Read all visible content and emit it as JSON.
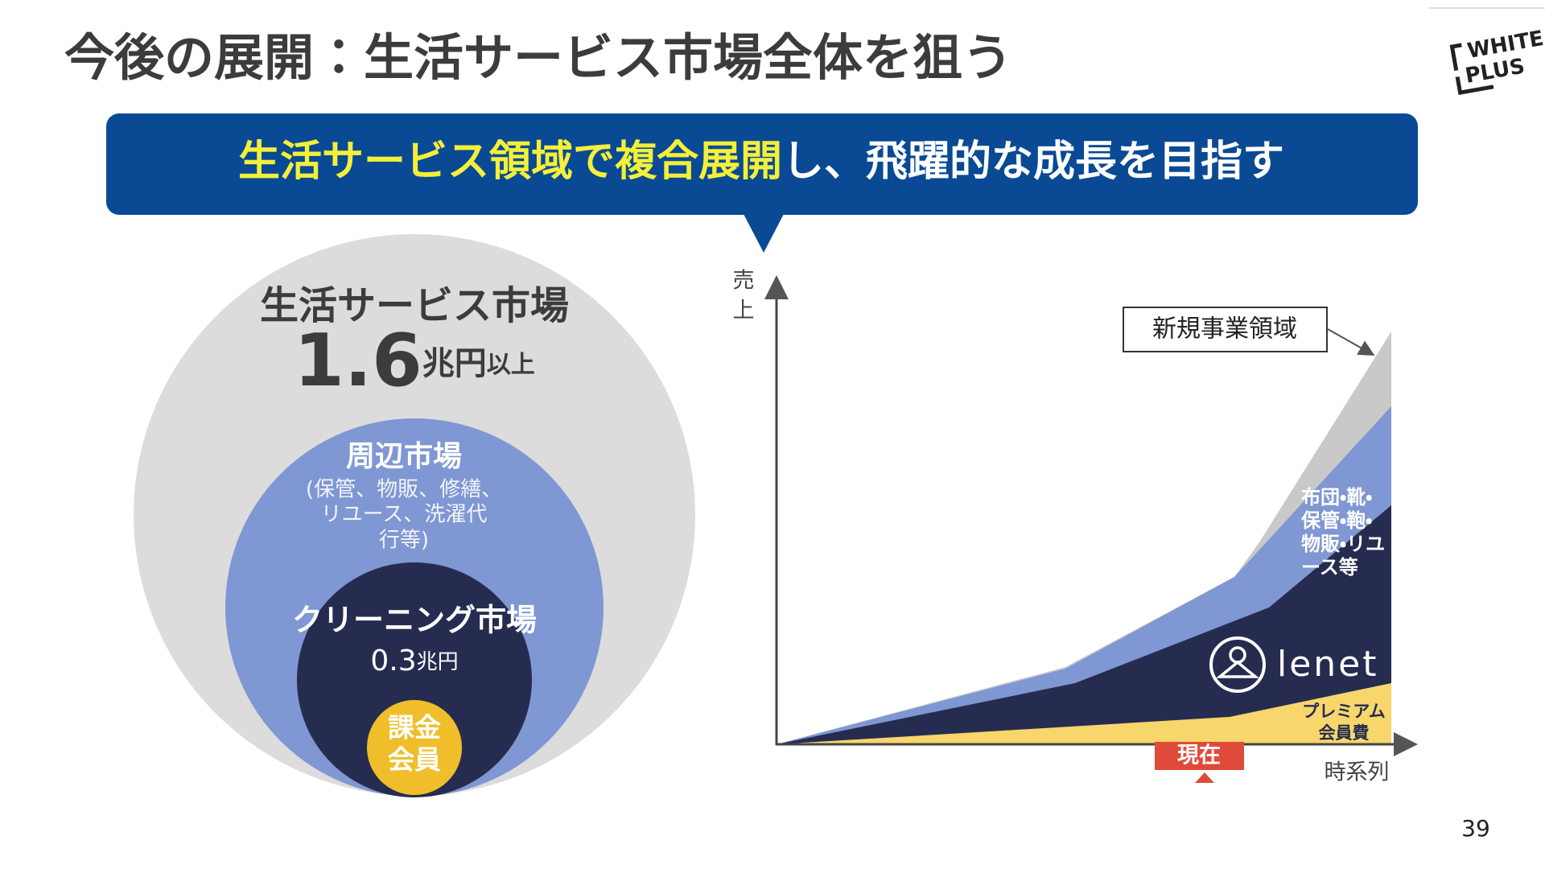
{
  "header": {
    "title": "今後の展開：生活サービス市場全体を狙う",
    "logo": [
      "WHITE",
      "PLUS"
    ]
  },
  "banner": {
    "highlight": "生活サービス領域で複合展開",
    "rest": "し、飛躍的な成長を目指す"
  },
  "market": {
    "outer": {
      "label": "生活サービス市場",
      "value": 1.6,
      "unit": "兆円",
      "suffix": "以上"
    },
    "middle": {
      "label": "周辺市場",
      "lines": [
        "(保管、物販、修繕、",
        "リユース、洗濯代",
        "行等)"
      ]
    },
    "inner": {
      "label": "クリーニング市場",
      "value": 0.3,
      "unit": "兆円"
    },
    "core": {
      "lines": [
        "課金",
        "会員"
      ]
    }
  },
  "growth": {
    "y_axis": [
      "売",
      "上"
    ],
    "x_axis": "時系列",
    "callout": "新規事業領域",
    "peripheral": [
      "布団・靴・",
      "保管・鞄・",
      "物販・リユ",
      "ース等"
    ],
    "brand": "lenet",
    "premium": [
      "プレミアム",
      "会員費"
    ],
    "now": "現在"
  },
  "footer": {
    "page": 39
  }
}
